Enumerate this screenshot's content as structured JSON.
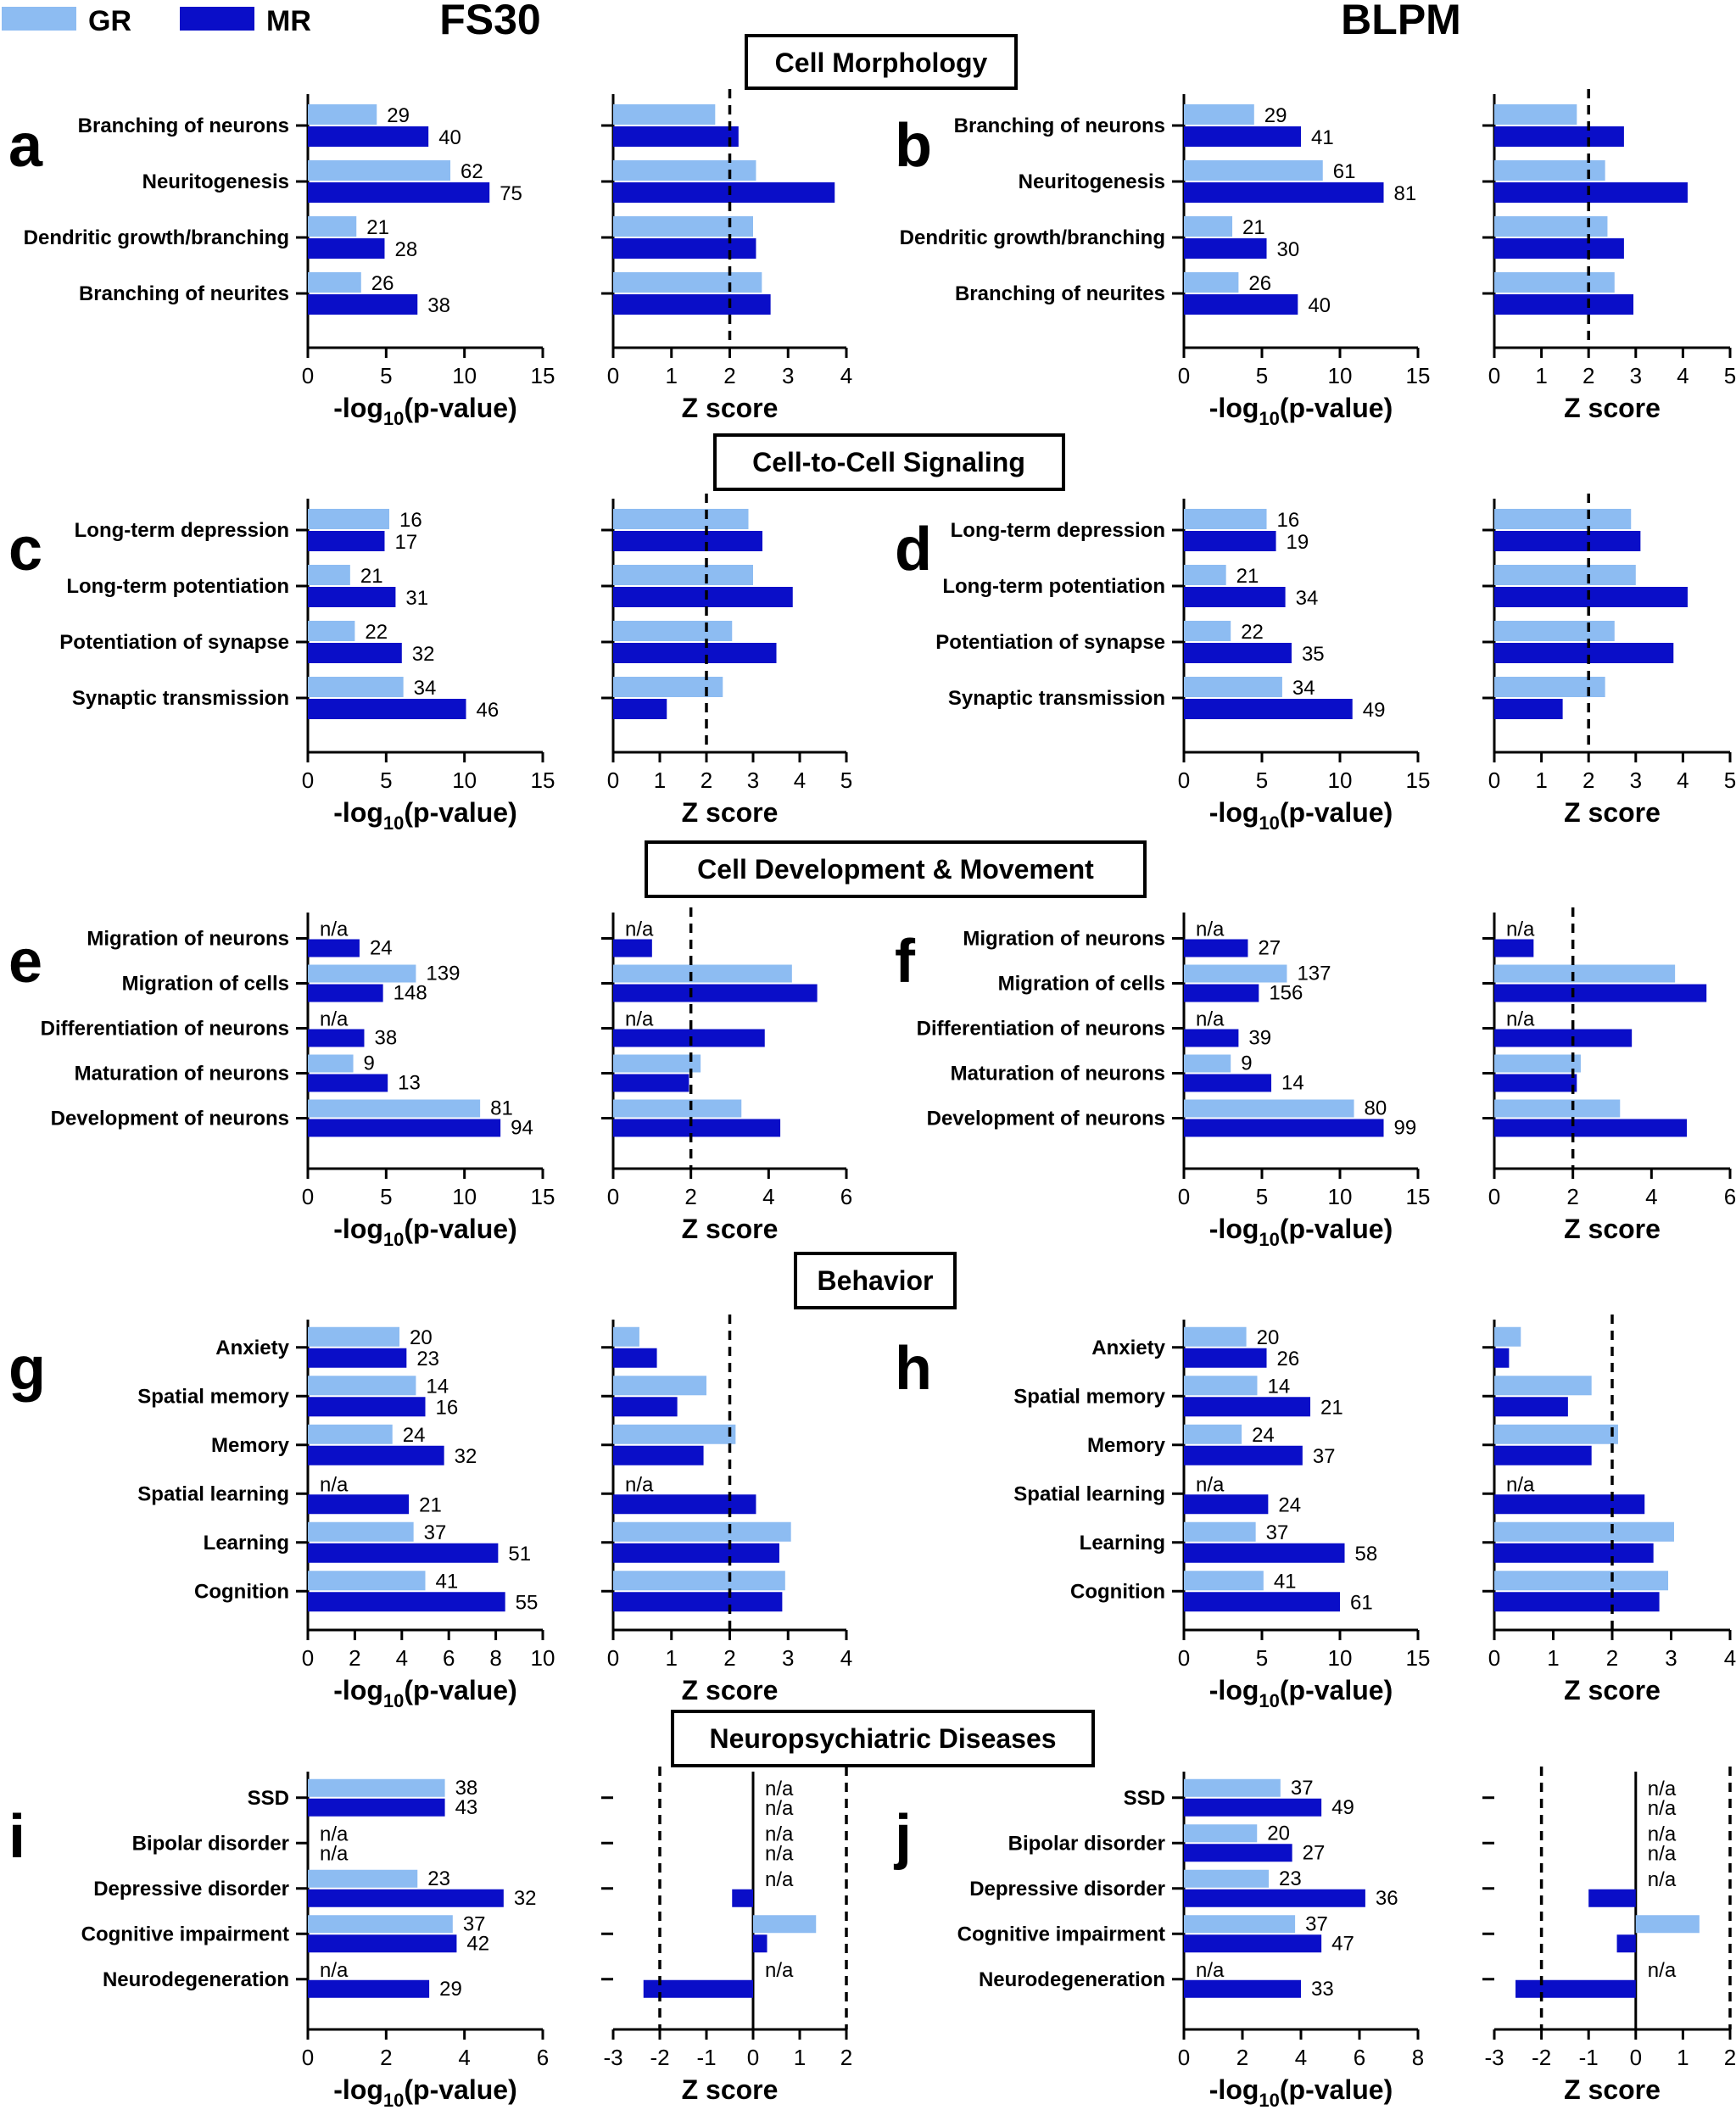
{
  "legend": [
    {
      "label": "GR",
      "color": "#8dbcf2"
    },
    {
      "label": "MR",
      "color": "#0a0ec8"
    }
  ],
  "column_titles": [
    "FS30",
    "BLPM"
  ],
  "colors": {
    "GR": "#8dbcf2",
    "MR": "#0a0ec8"
  },
  "sections": [
    {
      "title": "Cell Morphology"
    },
    {
      "title": "Cell-to-Cell Signaling"
    },
    {
      "title": "Cell Development & Movement"
    },
    {
      "title": "Behavior"
    },
    {
      "title": "Neuropsychiatric Diseases"
    }
  ],
  "axis_labels": {
    "pvalue_prefix": "-log",
    "pvalue_sub": "10",
    "pvalue_suffix": "(p-value)",
    "zscore": "Z score"
  },
  "chart_data": [
    {
      "panel": "a",
      "type": "bar",
      "orientation": "horizontal",
      "metric": "-log10(p-value)",
      "categories": [
        "Branching of neurons",
        "Neuritogenesis",
        "Dendritic growth/branching",
        "Branching of neurites"
      ],
      "series": [
        {
          "name": "GR",
          "values": [
            4.4,
            9.1,
            3.1,
            3.4
          ],
          "labels": [
            "29",
            "62",
            "21",
            "26"
          ]
        },
        {
          "name": "MR",
          "values": [
            7.7,
            11.6,
            4.9,
            7.0
          ],
          "labels": [
            "40",
            "75",
            "28",
            "38"
          ]
        }
      ],
      "xlim": [
        0,
        15
      ],
      "xticks": [
        0,
        5,
        10,
        15
      ]
    },
    {
      "panel": "a",
      "type": "bar",
      "orientation": "horizontal",
      "metric": "Z score",
      "categories": [
        "Branching of neurons",
        "Neuritogenesis",
        "Dendritic growth/branching",
        "Branching of neurites"
      ],
      "series": [
        {
          "name": "GR",
          "values": [
            1.75,
            2.45,
            2.4,
            2.55
          ]
        },
        {
          "name": "MR",
          "values": [
            2.15,
            3.8,
            2.45,
            2.7
          ]
        }
      ],
      "xlim": [
        0,
        4
      ],
      "xticks": [
        0,
        1,
        2,
        3,
        4
      ],
      "reference_lines": [
        2
      ]
    },
    {
      "panel": "b",
      "type": "bar",
      "orientation": "horizontal",
      "metric": "-log10(p-value)",
      "categories": [
        "Branching of neurons",
        "Neuritogenesis",
        "Dendritic growth/branching",
        "Branching of neurites"
      ],
      "series": [
        {
          "name": "GR",
          "values": [
            4.5,
            8.9,
            3.1,
            3.5
          ],
          "labels": [
            "29",
            "61",
            "21",
            "26"
          ]
        },
        {
          "name": "MR",
          "values": [
            7.5,
            12.8,
            5.3,
            7.3
          ],
          "labels": [
            "41",
            "81",
            "30",
            "40"
          ]
        }
      ],
      "xlim": [
        0,
        15
      ],
      "xticks": [
        0,
        5,
        10,
        15
      ]
    },
    {
      "panel": "b",
      "type": "bar",
      "orientation": "horizontal",
      "metric": "Z score",
      "categories": [
        "Branching of neurons",
        "Neuritogenesis",
        "Dendritic growth/branching",
        "Branching of neurites"
      ],
      "series": [
        {
          "name": "GR",
          "values": [
            1.75,
            2.35,
            2.4,
            2.55
          ]
        },
        {
          "name": "MR",
          "values": [
            2.75,
            4.1,
            2.75,
            2.95
          ]
        }
      ],
      "xlim": [
        0,
        5
      ],
      "xticks": [
        0,
        1,
        2,
        3,
        4,
        5
      ],
      "reference_lines": [
        2
      ]
    },
    {
      "panel": "c",
      "type": "bar",
      "orientation": "horizontal",
      "metric": "-log10(p-value)",
      "categories": [
        "Long-term depression",
        "Long-term potentiation",
        "Potentiation of synapse",
        "Synaptic transmission"
      ],
      "series": [
        {
          "name": "GR",
          "values": [
            5.2,
            2.7,
            3.0,
            6.1
          ],
          "labels": [
            "16",
            "21",
            "22",
            "34"
          ]
        },
        {
          "name": "MR",
          "values": [
            4.9,
            5.6,
            6.0,
            10.1
          ],
          "labels": [
            "17",
            "31",
            "32",
            "46"
          ]
        }
      ],
      "xlim": [
        0,
        15
      ],
      "xticks": [
        0,
        5,
        10,
        15
      ]
    },
    {
      "panel": "c",
      "type": "bar",
      "orientation": "horizontal",
      "metric": "Z score",
      "categories": [
        "Long-term depression",
        "Long-term potentiation",
        "Potentiation of synapse",
        "Synaptic transmission"
      ],
      "series": [
        {
          "name": "GR",
          "values": [
            2.9,
            3.0,
            2.55,
            2.35
          ]
        },
        {
          "name": "MR",
          "values": [
            3.2,
            3.85,
            3.5,
            1.15
          ]
        }
      ],
      "xlim": [
        0,
        5
      ],
      "xticks": [
        0,
        1,
        2,
        3,
        4,
        5
      ],
      "reference_lines": [
        2
      ]
    },
    {
      "panel": "d",
      "type": "bar",
      "orientation": "horizontal",
      "metric": "-log10(p-value)",
      "categories": [
        "Long-term depression",
        "Long-term potentiation",
        "Potentiation of synapse",
        "Synaptic transmission"
      ],
      "series": [
        {
          "name": "GR",
          "values": [
            5.3,
            2.7,
            3.0,
            6.3
          ],
          "labels": [
            "16",
            "21",
            "22",
            "34"
          ]
        },
        {
          "name": "MR",
          "values": [
            5.9,
            6.5,
            6.9,
            10.8
          ],
          "labels": [
            "19",
            "34",
            "35",
            "49"
          ]
        }
      ],
      "xlim": [
        0,
        15
      ],
      "xticks": [
        0,
        5,
        10,
        15
      ]
    },
    {
      "panel": "d",
      "type": "bar",
      "orientation": "horizontal",
      "metric": "Z score",
      "categories": [
        "Long-term depression",
        "Long-term potentiation",
        "Potentiation of synapse",
        "Synaptic transmission"
      ],
      "series": [
        {
          "name": "GR",
          "values": [
            2.9,
            3.0,
            2.55,
            2.35
          ]
        },
        {
          "name": "MR",
          "values": [
            3.1,
            4.1,
            3.8,
            1.45
          ]
        }
      ],
      "xlim": [
        0,
        5
      ],
      "xticks": [
        0,
        1,
        2,
        3,
        4,
        5
      ],
      "reference_lines": [
        2
      ]
    },
    {
      "panel": "e",
      "type": "bar",
      "orientation": "horizontal",
      "metric": "-log10(p-value)",
      "categories": [
        "Migration of neurons",
        "Migration of cells",
        "Differentiation of neurons",
        "Maturation of neurons",
        "Development of neurons"
      ],
      "series": [
        {
          "name": "GR",
          "values": [
            null,
            6.9,
            null,
            2.9,
            11.0
          ],
          "labels": [
            "n/a",
            "139",
            "n/a",
            "9",
            "81"
          ]
        },
        {
          "name": "MR",
          "values": [
            3.3,
            4.8,
            3.6,
            5.1,
            12.3
          ],
          "labels": [
            "24",
            "148",
            "38",
            "13",
            "94"
          ]
        }
      ],
      "xlim": [
        0,
        15
      ],
      "xticks": [
        0,
        5,
        10,
        15
      ]
    },
    {
      "panel": "e",
      "type": "bar",
      "orientation": "horizontal",
      "metric": "Z score",
      "categories": [
        "Migration of neurons",
        "Migration of cells",
        "Differentiation of neurons",
        "Maturation of neurons",
        "Development of neurons"
      ],
      "series": [
        {
          "name": "GR",
          "values": [
            null,
            4.6,
            null,
            2.25,
            3.3
          ],
          "labels": [
            "n/a",
            "",
            "n/a",
            "",
            ""
          ]
        },
        {
          "name": "MR",
          "values": [
            1.0,
            5.25,
            3.9,
            1.95,
            4.3
          ]
        }
      ],
      "xlim": [
        0,
        6
      ],
      "xticks": [
        0,
        2,
        4,
        6
      ],
      "reference_lines": [
        2
      ]
    },
    {
      "panel": "f",
      "type": "bar",
      "orientation": "horizontal",
      "metric": "-log10(p-value)",
      "categories": [
        "Migration of neurons",
        "Migration of cells",
        "Differentiation of neurons",
        "Maturation of neurons",
        "Development of neurons"
      ],
      "series": [
        {
          "name": "GR",
          "values": [
            null,
            6.6,
            null,
            3.0,
            10.9
          ],
          "labels": [
            "n/a",
            "137",
            "n/a",
            "9",
            "80"
          ]
        },
        {
          "name": "MR",
          "values": [
            4.1,
            4.8,
            3.5,
            5.6,
            12.8
          ],
          "labels": [
            "27",
            "156",
            "39",
            "14",
            "99"
          ]
        }
      ],
      "xlim": [
        0,
        15
      ],
      "xticks": [
        0,
        5,
        10,
        15
      ]
    },
    {
      "panel": "f",
      "type": "bar",
      "orientation": "horizontal",
      "metric": "Z score",
      "categories": [
        "Migration of neurons",
        "Migration of cells",
        "Differentiation of neurons",
        "Maturation of neurons",
        "Development of neurons"
      ],
      "series": [
        {
          "name": "GR",
          "values": [
            null,
            4.6,
            null,
            2.2,
            3.2
          ],
          "labels": [
            "n/a",
            "",
            "n/a",
            "",
            ""
          ]
        },
        {
          "name": "MR",
          "values": [
            1.0,
            5.4,
            3.5,
            2.1,
            4.9
          ]
        }
      ],
      "xlim": [
        0,
        6
      ],
      "xticks": [
        0,
        2,
        4,
        6
      ],
      "reference_lines": [
        2
      ]
    },
    {
      "panel": "g",
      "type": "bar",
      "orientation": "horizontal",
      "metric": "-log10(p-value)",
      "categories": [
        "Anxiety",
        "Spatial memory",
        "Memory",
        "Spatial learning",
        "Learning",
        "Cognition"
      ],
      "series": [
        {
          "name": "GR",
          "values": [
            3.9,
            4.6,
            3.6,
            null,
            4.5,
            5.0
          ],
          "labels": [
            "20",
            "14",
            "24",
            "n/a",
            "37",
            "41"
          ]
        },
        {
          "name": "MR",
          "values": [
            4.2,
            5.0,
            5.8,
            4.3,
            8.1,
            8.4
          ],
          "labels": [
            "23",
            "16",
            "32",
            "21",
            "51",
            "55"
          ]
        }
      ],
      "xlim": [
        0,
        10
      ],
      "xticks": [
        0,
        2,
        4,
        6,
        8,
        10
      ]
    },
    {
      "panel": "g",
      "type": "bar",
      "orientation": "horizontal",
      "metric": "Z score",
      "categories": [
        "Anxiety",
        "Spatial memory",
        "Memory",
        "Spatial learning",
        "Learning",
        "Cognition"
      ],
      "series": [
        {
          "name": "GR",
          "values": [
            0.45,
            1.6,
            2.1,
            null,
            3.05,
            2.95
          ],
          "labels": [
            "",
            "",
            "",
            "n/a",
            "",
            ""
          ]
        },
        {
          "name": "MR",
          "values": [
            0.75,
            1.1,
            1.55,
            2.45,
            2.85,
            2.9
          ]
        }
      ],
      "xlim": [
        0,
        4
      ],
      "xticks": [
        0,
        1,
        2,
        3,
        4
      ],
      "reference_lines": [
        2
      ]
    },
    {
      "panel": "h",
      "type": "bar",
      "orientation": "horizontal",
      "metric": "-log10(p-value)",
      "categories": [
        "Anxiety",
        "Spatial memory",
        "Memory",
        "Spatial learning",
        "Learning",
        "Cognition"
      ],
      "series": [
        {
          "name": "GR",
          "values": [
            4.0,
            4.7,
            3.7,
            null,
            4.6,
            5.1
          ],
          "labels": [
            "20",
            "14",
            "24",
            "n/a",
            "37",
            "41"
          ]
        },
        {
          "name": "MR",
          "values": [
            5.3,
            8.1,
            7.6,
            5.4,
            10.3,
            10.0
          ],
          "labels": [
            "26",
            "21",
            "37",
            "24",
            "58",
            "61"
          ]
        }
      ],
      "xlim": [
        0,
        15
      ],
      "xticks": [
        0,
        5,
        10,
        15
      ]
    },
    {
      "panel": "h",
      "type": "bar",
      "orientation": "horizontal",
      "metric": "Z score",
      "categories": [
        "Anxiety",
        "Spatial memory",
        "Memory",
        "Spatial learning",
        "Learning",
        "Cognition"
      ],
      "series": [
        {
          "name": "GR",
          "values": [
            0.45,
            1.65,
            2.1,
            null,
            3.05,
            2.95
          ],
          "labels": [
            "",
            "",
            "",
            "n/a",
            "",
            ""
          ]
        },
        {
          "name": "MR",
          "values": [
            0.25,
            1.25,
            1.65,
            2.55,
            2.7,
            2.8
          ]
        }
      ],
      "xlim": [
        0,
        4
      ],
      "xticks": [
        0,
        1,
        2,
        3,
        4
      ],
      "reference_lines": [
        2
      ]
    },
    {
      "panel": "i",
      "type": "bar",
      "orientation": "horizontal",
      "metric": "-log10(p-value)",
      "categories": [
        "SSD",
        "Bipolar disorder",
        "Depressive disorder",
        "Cognitive impairment",
        "Neurodegeneration"
      ],
      "series": [
        {
          "name": "GR",
          "values": [
            3.5,
            null,
            2.8,
            3.7,
            null
          ],
          "labels": [
            "38",
            "n/a",
            "23",
            "37",
            "n/a"
          ]
        },
        {
          "name": "MR",
          "values": [
            3.5,
            null,
            5.0,
            3.8,
            3.1
          ],
          "labels": [
            "43",
            "n/a",
            "32",
            "42",
            "29"
          ]
        }
      ],
      "xlim": [
        0,
        6
      ],
      "xticks": [
        0,
        2,
        4,
        6
      ]
    },
    {
      "panel": "i",
      "type": "bar",
      "orientation": "horizontal",
      "metric": "Z score",
      "categories": [
        "SSD",
        "Bipolar disorder",
        "Depressive disorder",
        "Cognitive impairment",
        "Neurodegeneration"
      ],
      "series": [
        {
          "name": "GR",
          "values": [
            null,
            null,
            null,
            1.35,
            null
          ],
          "labels": [
            "n/a",
            "n/a",
            "n/a",
            "",
            "n/a"
          ]
        },
        {
          "name": "MR",
          "values": [
            null,
            null,
            -0.45,
            0.3,
            -2.35
          ],
          "labels": [
            "n/a",
            "n/a",
            "",
            "",
            ""
          ]
        }
      ],
      "xlim": [
        -3,
        2
      ],
      "xticks": [
        -3,
        -2,
        -1,
        0,
        1,
        2
      ],
      "reference_lines": [
        -2,
        2
      ]
    },
    {
      "panel": "j",
      "type": "bar",
      "orientation": "horizontal",
      "metric": "-log10(p-value)",
      "categories": [
        "SSD",
        "Bipolar disorder",
        "Depressive disorder",
        "Cognitive impairment",
        "Neurodegeneration"
      ],
      "series": [
        {
          "name": "GR",
          "values": [
            3.3,
            2.5,
            2.9,
            3.8,
            null
          ],
          "labels": [
            "37",
            "20",
            "23",
            "37",
            "n/a"
          ]
        },
        {
          "name": "MR",
          "values": [
            4.7,
            3.7,
            6.2,
            4.7,
            4.0
          ],
          "labels": [
            "49",
            "27",
            "36",
            "47",
            "33"
          ]
        }
      ],
      "xlim": [
        0,
        8
      ],
      "xticks": [
        0,
        2,
        4,
        6,
        8
      ]
    },
    {
      "panel": "j",
      "type": "bar",
      "orientation": "horizontal",
      "metric": "Z score",
      "categories": [
        "SSD",
        "Bipolar disorder",
        "Depressive disorder",
        "Cognitive impairment",
        "Neurodegeneration"
      ],
      "series": [
        {
          "name": "GR",
          "values": [
            null,
            null,
            null,
            1.35,
            null
          ],
          "labels": [
            "n/a",
            "n/a",
            "n/a",
            "",
            "n/a"
          ]
        },
        {
          "name": "MR",
          "values": [
            null,
            null,
            -1.0,
            -0.4,
            -2.55
          ],
          "labels": [
            "n/a",
            "n/a",
            "",
            "",
            ""
          ]
        }
      ],
      "xlim": [
        -3,
        2
      ],
      "xticks": [
        -3,
        -2,
        -1,
        0,
        1,
        2
      ],
      "reference_lines": [
        -2,
        2
      ]
    }
  ]
}
